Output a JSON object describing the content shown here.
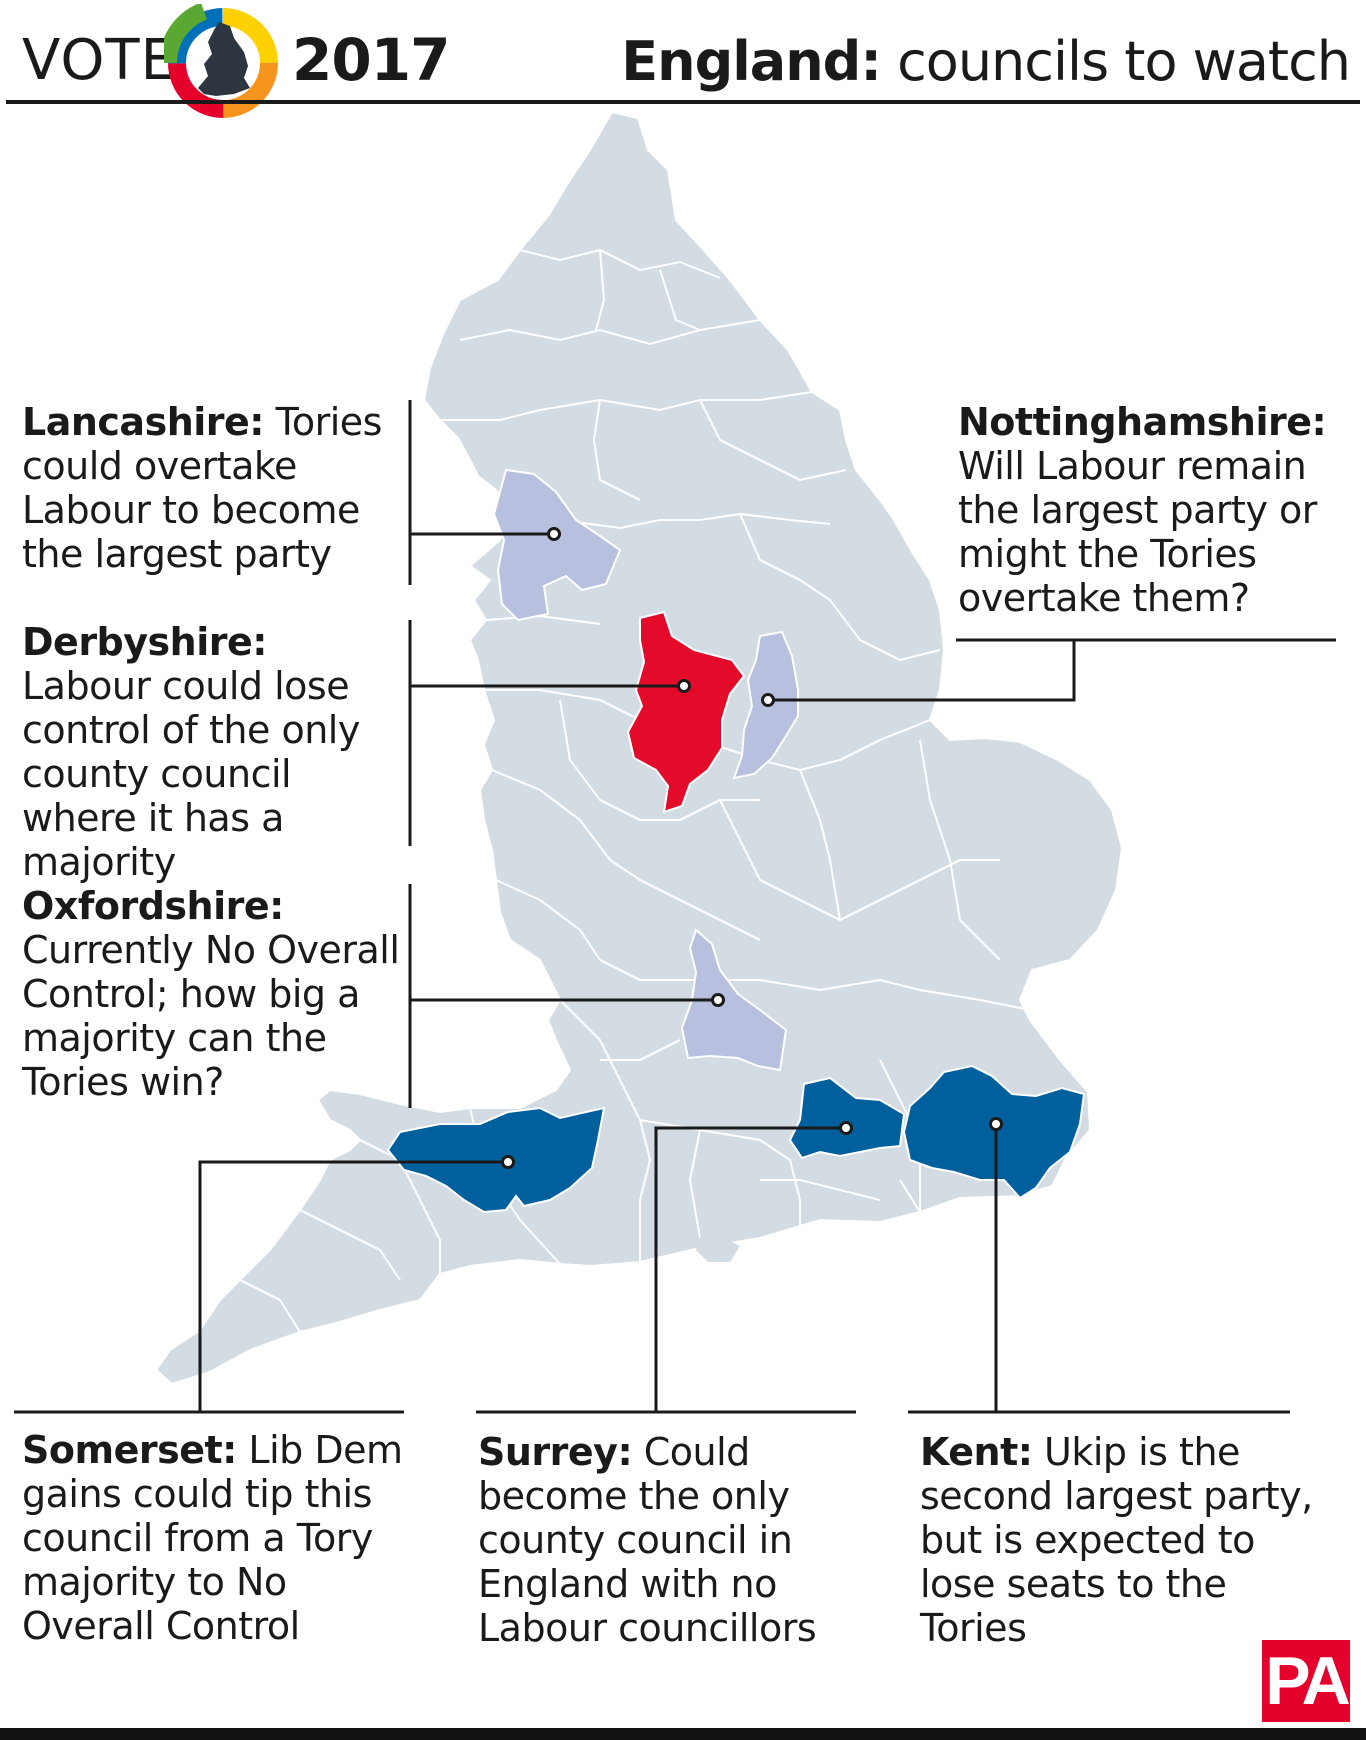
{
  "header": {
    "vote_word": "VOTE",
    "year": "2017",
    "headline_bold": "England:",
    "headline_rest": " councils to watch"
  },
  "colors": {
    "base_region": "#d3dbe3",
    "region_border": "#ffffff",
    "labour_watch": "#e30a2a",
    "tory_watch": "#00609d",
    "noc_watch": "#b7c0de",
    "leader_line": "#1a1a1a",
    "pa_brand": "#e4002b"
  },
  "map": {
    "highlighted_counties": [
      {
        "name": "Lancashire",
        "category": "noc_watch"
      },
      {
        "name": "Derbyshire",
        "category": "labour_watch"
      },
      {
        "name": "Nottinghamshire",
        "category": "noc_watch"
      },
      {
        "name": "Oxfordshire",
        "category": "noc_watch"
      },
      {
        "name": "Somerset",
        "category": "tory_watch"
      },
      {
        "name": "Surrey",
        "category": "tory_watch"
      },
      {
        "name": "Kent",
        "category": "tory_watch"
      }
    ]
  },
  "callouts": {
    "lancashire": {
      "name": "Lancashire:",
      "text": " Tories could overtake Labour to become the largest party"
    },
    "derbyshire": {
      "name": "Derbyshire:",
      "text": " Labour could lose control of the only county council where it has a majority"
    },
    "oxfordshire": {
      "name": "Oxfordshire:",
      "text": " Currently No Overall Control; how big a majority can the Tories win?"
    },
    "nottinghamshire": {
      "name": "Nottinghamshire:",
      "text": " Will Labour remain the largest party or might the Tories overtake them?"
    },
    "somerset": {
      "name": "Somerset:",
      "text": " Lib Dem gains could tip this council from a Tory majority to No Overall Control"
    },
    "surrey": {
      "name": "Surrey:",
      "text": " Could become the only county council in England with no Labour councillors"
    },
    "kent": {
      "name": "Kent:",
      "text": " Ukip is the second largest party, but is expected to lose seats to the Tories"
    }
  },
  "footer": {
    "logo_text": "PA"
  }
}
